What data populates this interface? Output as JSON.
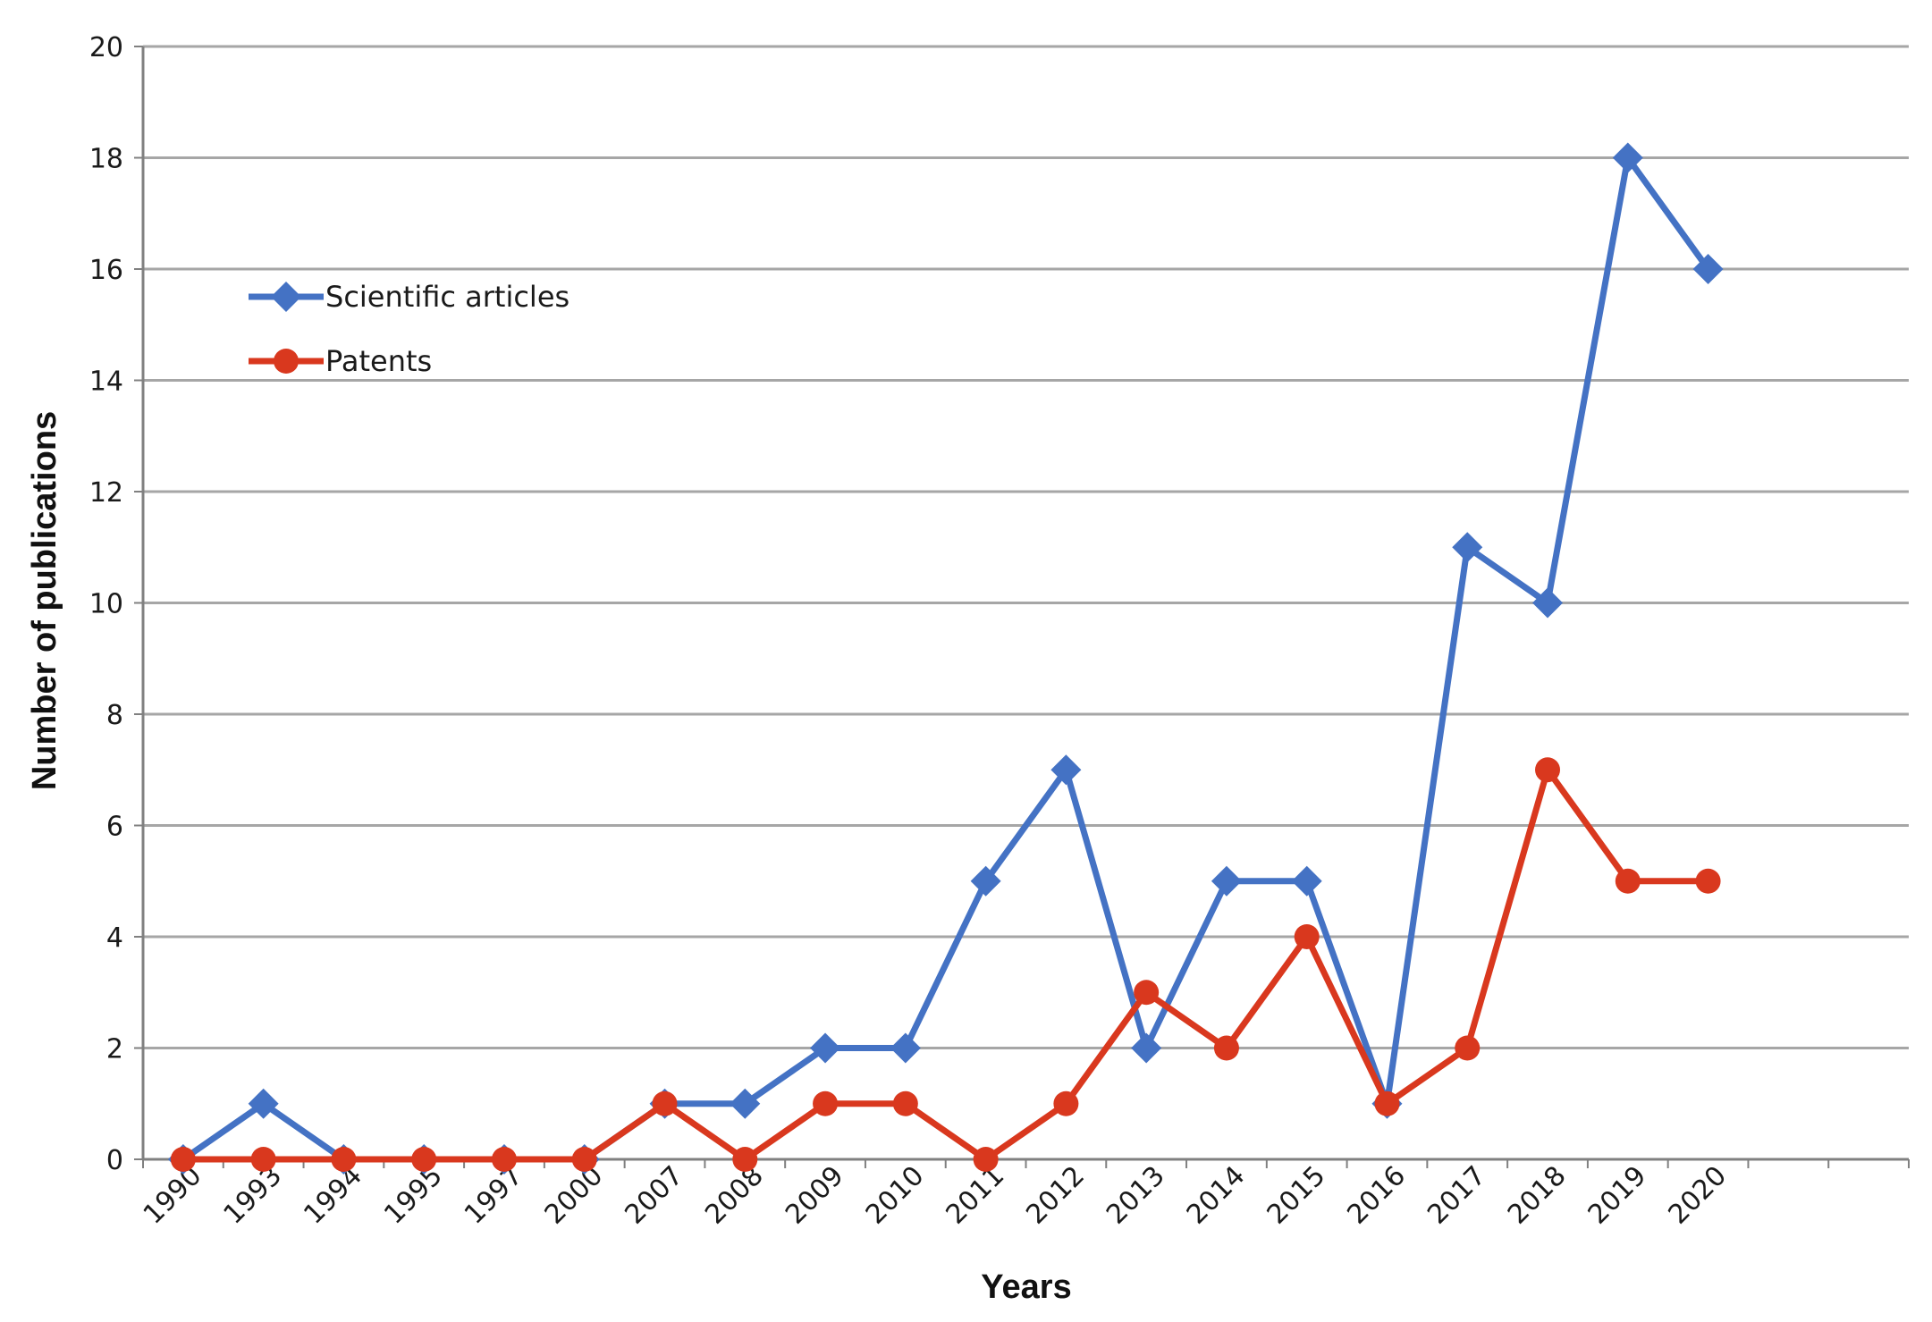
{
  "chart_data": {
    "type": "line",
    "title": "",
    "xlabel": "Years",
    "ylabel": "Number of publications",
    "categories": [
      "1990",
      "1993",
      "1994",
      "1995",
      "1997",
      "2000",
      "2007",
      "2008",
      "2009",
      "2010",
      "2011",
      "2012",
      "2013",
      "2014",
      "2015",
      "2016",
      "2017",
      "2018",
      "2019",
      "2020"
    ],
    "yticks": [
      "0",
      "2",
      "4",
      "6",
      "8",
      "10",
      "12",
      "14",
      "16",
      "18",
      "20"
    ],
    "ylim": [
      0,
      20
    ],
    "grid": true,
    "legend_position": "upper-left",
    "series": [
      {
        "name": "Scientific articles",
        "marker": "diamond",
        "color": "#4472C4",
        "values": [
          0,
          1,
          0,
          0,
          0,
          0,
          1,
          1,
          2,
          2,
          5,
          7,
          2,
          5,
          5,
          1,
          11,
          10,
          18,
          16
        ]
      },
      {
        "name": "Patents",
        "marker": "circle",
        "color": "#D9381E",
        "values": [
          0,
          0,
          0,
          0,
          0,
          0,
          1,
          0,
          1,
          1,
          0,
          1,
          3,
          2,
          4,
          1,
          2,
          7,
          5,
          5
        ]
      }
    ]
  }
}
